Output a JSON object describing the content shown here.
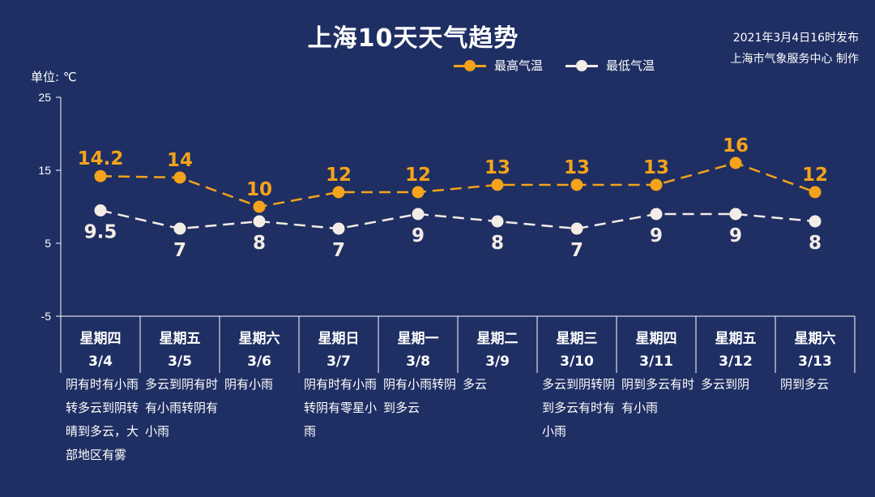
{
  "header": {
    "title": "上海10天天气趋势",
    "publish_time": "2021年3月4日16时发布",
    "publisher": "上海市气象服务中心 制作",
    "unit": "单位: ℃"
  },
  "colors": {
    "background": "#1f2f63",
    "high": "#f5a31a",
    "low": "#f4ece6",
    "axis": "#ffffff"
  },
  "chart_data": {
    "type": "line",
    "title": "上海10天天气趋势",
    "ylabel": "单位: ℃",
    "ylim": [
      -5,
      25
    ],
    "yticks": [
      25,
      15,
      5,
      -5
    ],
    "grid": false,
    "legend_position": "top-right",
    "categories": [
      {
        "weekday": "星期四",
        "date": "3/4",
        "weather": "阴有时有小雨转多云到阴转晴到多云，大部地区有雾"
      },
      {
        "weekday": "星期五",
        "date": "3/5",
        "weather": "多云到阴有时有小雨转阴有小雨"
      },
      {
        "weekday": "星期六",
        "date": "3/6",
        "weather": "阴有小雨"
      },
      {
        "weekday": "星期日",
        "date": "3/7",
        "weather": "阴有时有小雨转阴有零星小雨"
      },
      {
        "weekday": "星期一",
        "date": "3/8",
        "weather": "阴有小雨转阴到多云"
      },
      {
        "weekday": "星期二",
        "date": "3/9",
        "weather": "多云"
      },
      {
        "weekday": "星期三",
        "date": "3/10",
        "weather": "多云到阴转阴到多云有时有小雨"
      },
      {
        "weekday": "星期四",
        "date": "3/11",
        "weather": "阴到多云有时有小雨"
      },
      {
        "weekday": "星期五",
        "date": "3/12",
        "weather": "多云到阴"
      },
      {
        "weekday": "星期六",
        "date": "3/13",
        "weather": "阴到多云"
      }
    ],
    "series": [
      {
        "name": "最高气温",
        "values": [
          14.2,
          14,
          10,
          12,
          12,
          13,
          13,
          13,
          16,
          12
        ],
        "labels": [
          "14.2",
          "14",
          "10",
          "12",
          "12",
          "13",
          "13",
          "13",
          "16",
          "12"
        ]
      },
      {
        "name": "最低气温",
        "values": [
          9.5,
          7,
          8,
          7,
          9,
          8,
          7,
          9,
          9,
          8
        ],
        "labels": [
          "9.5",
          "7",
          "8",
          "7",
          "9",
          "8",
          "7",
          "9",
          "9",
          "8"
        ]
      }
    ]
  }
}
